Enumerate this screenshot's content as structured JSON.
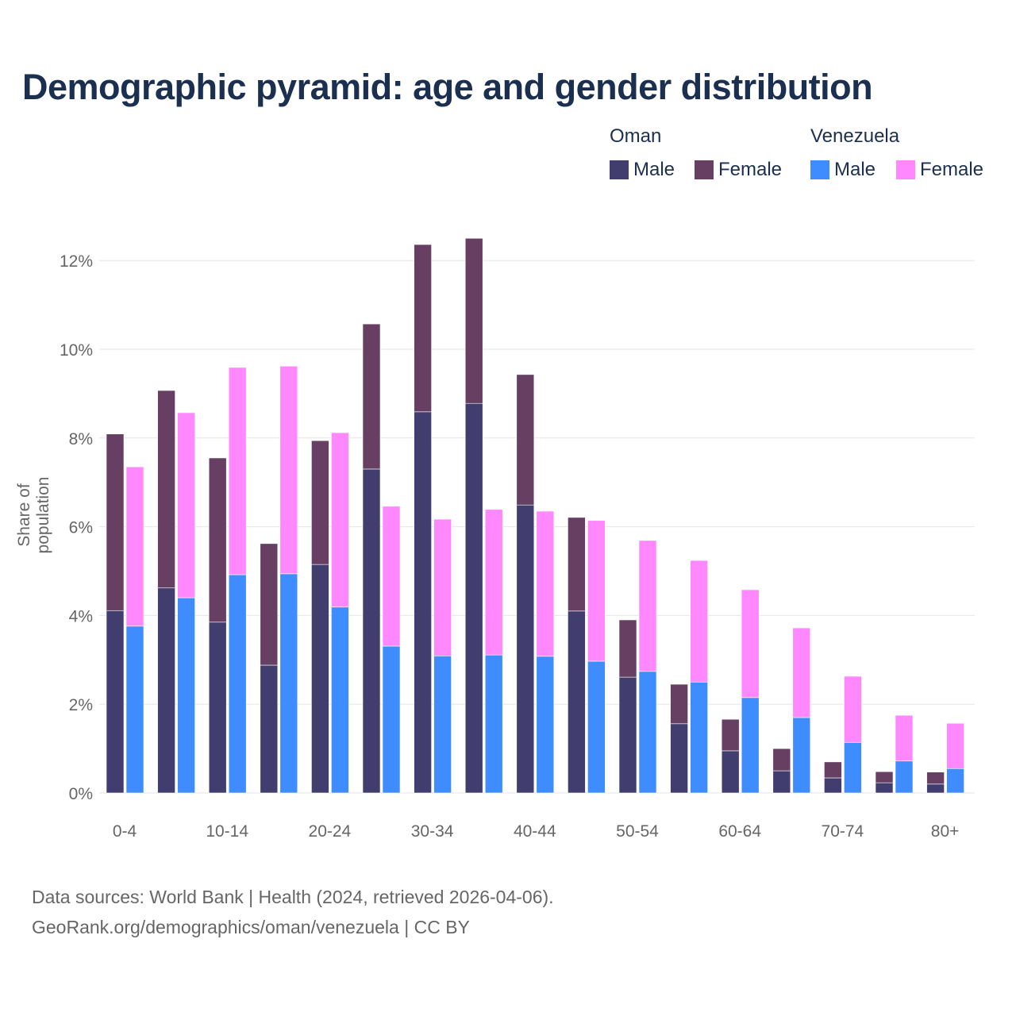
{
  "chart_data": {
    "type": "bar",
    "stacked": true,
    "title": "Demographic pyramid: age and gender distribution",
    "xlabel": "",
    "ylabel": "Share of population",
    "ylim": [
      0,
      12.5
    ],
    "yticks": [
      "0%",
      "2%",
      "4%",
      "6%",
      "8%",
      "10%",
      "12%"
    ],
    "ytick_values": [
      0,
      2,
      4,
      6,
      8,
      10,
      12
    ],
    "grid": true,
    "legend_placement": "top-right",
    "categories": [
      "0-4",
      "5-9",
      "10-14",
      "15-19",
      "20-24",
      "25-29",
      "30-34",
      "35-39",
      "40-44",
      "45-49",
      "50-54",
      "55-59",
      "60-64",
      "65-69",
      "70-74",
      "75-79",
      "80+"
    ],
    "xtick_labels_shown": [
      "0-4",
      "10-14",
      "20-24",
      "30-34",
      "40-44",
      "50-54",
      "60-64",
      "70-74",
      "80+"
    ],
    "countries": [
      {
        "name": "Oman",
        "series": [
          {
            "name": "Male",
            "color": "#413e6f",
            "values": [
              4.11,
              4.62,
              3.85,
              2.88,
              5.15,
              7.3,
              8.59,
              8.78,
              6.49,
              4.1,
              2.61,
              1.56,
              0.95,
              0.5,
              0.34,
              0.23,
              0.2
            ]
          },
          {
            "name": "Female",
            "color": "#673f63",
            "values": [
              3.98,
              4.45,
              3.7,
              2.74,
              2.79,
              3.27,
              3.77,
              3.72,
              2.94,
              2.11,
              1.29,
              0.89,
              0.71,
              0.5,
              0.36,
              0.25,
              0.27
            ]
          }
        ]
      },
      {
        "name": "Venezuela",
        "series": [
          {
            "name": "Male",
            "color": "#3f8cff",
            "values": [
              3.76,
              4.4,
              4.92,
              4.94,
              4.19,
              3.31,
              3.09,
              3.11,
              3.08,
              2.97,
              2.74,
              2.5,
              2.15,
              1.7,
              1.14,
              0.72,
              0.55
            ]
          },
          {
            "name": "Female",
            "color": "#ff88ff",
            "values": [
              3.59,
              4.17,
              4.67,
              4.68,
              3.93,
              3.15,
              3.08,
              3.28,
              3.27,
              3.17,
              2.95,
              2.74,
              2.43,
              2.02,
              1.49,
              1.03,
              1.02
            ]
          }
        ]
      }
    ]
  },
  "footer": {
    "source": "Data sources: World Bank | Health (2024, retrieved 2026-04-06).",
    "link": "GeoRank.org/demographics/oman/venezuela | CC BY"
  }
}
